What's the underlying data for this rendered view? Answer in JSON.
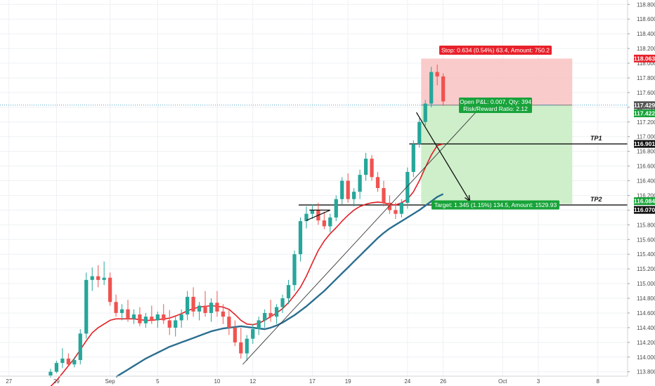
{
  "chart_data": {
    "type": "candlestick",
    "y_axis": {
      "position": "right",
      "range": [
        113.74,
        118.86
      ],
      "ticks": [
        "118.800",
        "118.600",
        "118.400",
        "118.200",
        "118.000",
        "117.800",
        "117.600",
        "117.400",
        "117.200",
        "117.000",
        "116.800",
        "116.600",
        "116.400",
        "116.200",
        "116.000",
        "115.800",
        "115.600",
        "115.400",
        "115.200",
        "115.000",
        "114.800",
        "114.600",
        "114.400",
        "114.200",
        "114.000",
        "113.800"
      ]
    },
    "x_axis": {
      "tick_labels": [
        {
          "label": "27",
          "bar": -7
        },
        {
          "label": "29",
          "bar": 1
        },
        {
          "label": "Sep",
          "bar": 10
        },
        {
          "label": "5",
          "bar": 18
        },
        {
          "label": "10",
          "bar": 28
        },
        {
          "label": "12",
          "bar": 34
        },
        {
          "label": "17",
          "bar": 44
        },
        {
          "label": "19",
          "bar": 50
        },
        {
          "label": "24",
          "bar": 60
        },
        {
          "label": "26",
          "bar": 66
        },
        {
          "label": "Oct",
          "bar": 76
        },
        {
          "label": "3",
          "bar": 82
        },
        {
          "label": "8",
          "bar": 92
        }
      ],
      "bar_range": [
        -8.5,
        97
      ]
    },
    "candles": [
      [
        113.75,
        113.84,
        113.72,
        113.8
      ],
      [
        113.8,
        113.95,
        113.78,
        113.92
      ],
      [
        113.92,
        114.12,
        113.85,
        113.98
      ],
      [
        113.98,
        114.05,
        113.88,
        113.9
      ],
      [
        113.9,
        114.0,
        113.86,
        113.96
      ],
      [
        113.96,
        114.38,
        113.9,
        114.32
      ],
      [
        114.32,
        115.15,
        114.25,
        115.05
      ],
      [
        115.05,
        115.22,
        114.9,
        115.1
      ],
      [
        115.1,
        115.25,
        114.95,
        115.05
      ],
      [
        115.05,
        115.3,
        114.98,
        115.08
      ],
      [
        115.08,
        115.15,
        114.7,
        114.75
      ],
      [
        114.75,
        114.85,
        114.55,
        114.6
      ],
      [
        114.6,
        114.72,
        114.5,
        114.65
      ],
      [
        114.65,
        114.78,
        114.48,
        114.52
      ],
      [
        114.52,
        114.65,
        114.45,
        114.58
      ],
      [
        114.58,
        114.68,
        114.42,
        114.46
      ],
      [
        114.46,
        114.6,
        114.4,
        114.55
      ],
      [
        114.55,
        114.7,
        114.45,
        114.5
      ],
      [
        114.5,
        114.62,
        114.4,
        114.58
      ],
      [
        114.58,
        114.72,
        114.45,
        114.5
      ],
      [
        114.5,
        114.64,
        114.3,
        114.4
      ],
      [
        114.4,
        114.55,
        114.28,
        114.5
      ],
      [
        114.5,
        114.65,
        114.4,
        114.58
      ],
      [
        114.58,
        114.9,
        114.5,
        114.82
      ],
      [
        114.82,
        114.95,
        114.55,
        114.62
      ],
      [
        114.62,
        114.75,
        114.5,
        114.7
      ],
      [
        114.7,
        114.9,
        114.55,
        114.6
      ],
      [
        114.6,
        114.8,
        114.48,
        114.74
      ],
      [
        114.74,
        114.9,
        114.55,
        114.62
      ],
      [
        114.62,
        114.72,
        114.45,
        114.55
      ],
      [
        114.55,
        114.65,
        114.3,
        114.4
      ],
      [
        114.4,
        114.5,
        114.15,
        114.2
      ],
      [
        114.2,
        114.4,
        113.98,
        114.05
      ],
      [
        114.05,
        114.3,
        113.95,
        114.25
      ],
      [
        114.25,
        114.45,
        114.18,
        114.38
      ],
      [
        114.38,
        114.55,
        114.3,
        114.5
      ],
      [
        114.5,
        114.65,
        114.4,
        114.6
      ],
      [
        114.6,
        114.78,
        114.48,
        114.55
      ],
      [
        114.55,
        114.72,
        114.45,
        114.68
      ],
      [
        114.68,
        114.85,
        114.6,
        114.8
      ],
      [
        114.8,
        115.05,
        114.72,
        114.98
      ],
      [
        114.98,
        115.45,
        114.9,
        115.4
      ],
      [
        115.4,
        115.9,
        115.3,
        115.85
      ],
      [
        115.85,
        116.05,
        115.75,
        115.95
      ],
      [
        115.95,
        116.08,
        115.88,
        116.0
      ],
      [
        116.0,
        116.1,
        115.8,
        115.86
      ],
      [
        115.86,
        115.98,
        115.74,
        115.78
      ],
      [
        115.78,
        115.95,
        115.7,
        115.9
      ],
      [
        115.9,
        116.2,
        115.85,
        116.15
      ],
      [
        116.15,
        116.45,
        116.08,
        116.4
      ],
      [
        116.4,
        116.5,
        116.1,
        116.15
      ],
      [
        116.15,
        116.3,
        116.05,
        116.25
      ],
      [
        116.25,
        116.55,
        116.15,
        116.48
      ],
      [
        116.48,
        116.78,
        116.4,
        116.7
      ],
      [
        116.7,
        116.75,
        116.4,
        116.45
      ],
      [
        116.45,
        116.52,
        116.25,
        116.3
      ],
      [
        116.3,
        116.4,
        116.05,
        116.1
      ],
      [
        116.1,
        116.2,
        115.95,
        116.0
      ],
      [
        116.0,
        116.1,
        115.88,
        115.95
      ],
      [
        115.95,
        116.15,
        115.9,
        116.1
      ],
      [
        116.1,
        116.58,
        116.02,
        116.52
      ],
      [
        116.52,
        116.95,
        116.45,
        116.9
      ],
      [
        116.9,
        117.25,
        116.85,
        117.2
      ],
      [
        117.2,
        117.5,
        117.15,
        117.45
      ],
      [
        117.45,
        117.95,
        117.4,
        117.88
      ],
      [
        117.88,
        117.98,
        117.7,
        117.82
      ],
      [
        117.82,
        117.86,
        117.42,
        117.48
      ]
    ],
    "series": [
      {
        "values": [
          113.6,
          113.68,
          113.78,
          113.88,
          113.98,
          114.1,
          114.22,
          114.33,
          114.4,
          114.45,
          114.5,
          114.52,
          114.52,
          114.52,
          114.52,
          114.51,
          114.5,
          114.5,
          114.51,
          114.52,
          114.53,
          114.56,
          114.59,
          114.63,
          114.66,
          114.68,
          114.69,
          114.7,
          114.69,
          114.68,
          114.65,
          114.58,
          114.5,
          114.45,
          114.44,
          114.46,
          114.5,
          114.55,
          114.6,
          114.66,
          114.74,
          114.84,
          114.95,
          115.1,
          115.28,
          115.45,
          115.58,
          115.68,
          115.76,
          115.85,
          115.93,
          116.0,
          116.05,
          116.08,
          116.1,
          116.11,
          116.1,
          116.08,
          116.07,
          116.1,
          116.15,
          116.25,
          116.4,
          116.58,
          116.75,
          116.88,
          116.9
        ]
      },
      {
        "values": [
          null,
          null,
          null,
          null,
          null,
          null,
          null,
          null,
          null,
          null,
          null,
          113.73,
          113.78,
          113.83,
          113.88,
          113.93,
          113.98,
          114.02,
          114.06,
          114.1,
          114.14,
          114.17,
          114.2,
          114.23,
          114.26,
          114.29,
          114.32,
          114.35,
          114.37,
          114.39,
          114.4,
          114.41,
          114.42,
          114.41,
          114.4,
          114.39,
          114.38,
          114.4,
          114.43,
          114.47,
          114.52,
          114.57,
          114.63,
          114.69,
          114.76,
          114.83,
          114.9,
          114.98,
          115.06,
          115.14,
          115.22,
          115.3,
          115.38,
          115.46,
          115.54,
          115.62,
          115.69,
          115.75,
          115.8,
          115.85,
          115.9,
          115.95,
          116.0,
          116.06,
          116.12,
          116.18,
          116.22
        ]
      }
    ],
    "colors": {
      "up_candle": "#26a69a",
      "down_candle": "#ef5350",
      "fast_ma": "#e31e24",
      "slow_ma": "#2b6e8f",
      "stop_zone": "#f9c2c2",
      "target_zone": "#c9edc4",
      "stop_badge": "#e8202a",
      "target_badge": "#18a33a",
      "price_badge": "#555555",
      "tp_badge": "#111111"
    },
    "position_tool": {
      "entry": 117.429,
      "stop": 118.063,
      "target": 116.084,
      "start_bar": 62.3,
      "end_bar": 87.7,
      "stop_label": "Stop: 0.634 (0.54%) 63.4, Amount: 750.2",
      "open_label_1": "Open P&L: 0.007, Qty: 394",
      "open_label_2": "Risk/Reward Ratio: 2.12",
      "target_label": "Target: 1.345 (1.15%) 134.5, Amount: 1529.93"
    },
    "levels": [
      {
        "price": 116.901,
        "label": "TP1",
        "start_bar": 60.3
      },
      {
        "price": 116.07,
        "label": "TP2",
        "start_bar": 41.7
      }
    ],
    "price_labels": [
      {
        "value": 118.063,
        "text": "118.063",
        "kind": "stop"
      },
      {
        "value": 117.429,
        "text": "117.429",
        "kind": "price"
      },
      {
        "value": 117.422,
        "text": "117.422",
        "kind": "target"
      },
      {
        "value": 116.901,
        "text": "116.901",
        "kind": "tp"
      },
      {
        "value": 116.084,
        "text": "116.084",
        "kind": "target"
      },
      {
        "value": 116.07,
        "text": "116.070",
        "kind": "tp"
      }
    ],
    "current_price": 117.429,
    "annotations": {
      "trend_line": [
        [
          32.3,
          113.9
        ],
        [
          72.5,
          117.42
        ]
      ],
      "arrow": [
        [
          61.5,
          117.33
        ],
        [
          70.5,
          116.12
        ]
      ],
      "triangle": [
        [
          43.0,
          115.86
        ],
        [
          47.0,
          116.0
        ],
        [
          43.5,
          116.0
        ]
      ]
    }
  }
}
